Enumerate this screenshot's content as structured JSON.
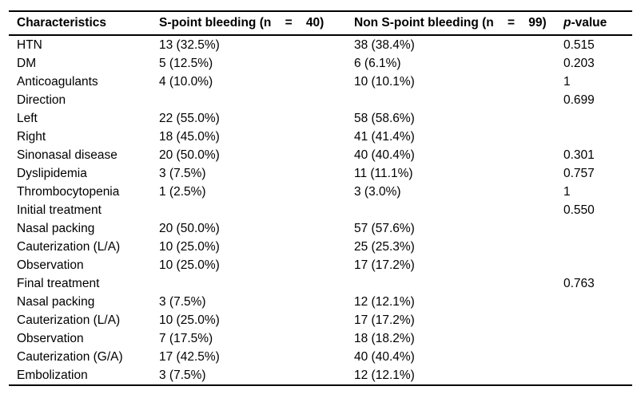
{
  "table": {
    "columns": [
      {
        "label": "Characteristics"
      },
      {
        "label": "S-point bleeding (n    =    40)"
      },
      {
        "label": "Non S-point bleeding (n    =    99)"
      },
      {
        "label_italic": "p",
        "label_rest": "-value"
      }
    ],
    "rows": [
      {
        "characteristic": "HTN",
        "s_point": "13 (32.5%)",
        "non_s_point": "38 (38.4%)",
        "p_value": "0.515"
      },
      {
        "characteristic": "DM",
        "s_point": "5 (12.5%)",
        "non_s_point": "6 (6.1%)",
        "p_value": "0.203"
      },
      {
        "characteristic": "Anticoagulants",
        "s_point": "4 (10.0%)",
        "non_s_point": "10 (10.1%)",
        "p_value": "1"
      },
      {
        "characteristic": "Direction",
        "s_point": "",
        "non_s_point": "",
        "p_value": "0.699"
      },
      {
        "characteristic": "Left",
        "s_point": "22 (55.0%)",
        "non_s_point": "58 (58.6%)",
        "p_value": ""
      },
      {
        "characteristic": "Right",
        "s_point": "18 (45.0%)",
        "non_s_point": "41 (41.4%)",
        "p_value": ""
      },
      {
        "characteristic": "Sinonasal disease",
        "s_point": "20 (50.0%)",
        "non_s_point": "40 (40.4%)",
        "p_value": "0.301"
      },
      {
        "characteristic": "Dyslipidemia",
        "s_point": "3 (7.5%)",
        "non_s_point": "11 (11.1%)",
        "p_value": "0.757"
      },
      {
        "characteristic": "Thrombocytopenia",
        "s_point": "1 (2.5%)",
        "non_s_point": "3 (3.0%)",
        "p_value": "1"
      },
      {
        "characteristic": "Initial treatment",
        "s_point": "",
        "non_s_point": "",
        "p_value": "0.550"
      },
      {
        "characteristic": "Nasal packing",
        "s_point": "20 (50.0%)",
        "non_s_point": "57 (57.6%)",
        "p_value": ""
      },
      {
        "characteristic": "Cauterization (L/A)",
        "s_point": "10 (25.0%)",
        "non_s_point": "25 (25.3%)",
        "p_value": ""
      },
      {
        "characteristic": "Observation",
        "s_point": "10 (25.0%)",
        "non_s_point": "17 (17.2%)",
        "p_value": ""
      },
      {
        "characteristic": "Final treatment",
        "s_point": "",
        "non_s_point": "",
        "p_value": "0.763"
      },
      {
        "characteristic": "Nasal packing",
        "s_point": "3 (7.5%)",
        "non_s_point": "12 (12.1%)",
        "p_value": ""
      },
      {
        "characteristic": "Cauterization (L/A)",
        "s_point": "10 (25.0%)",
        "non_s_point": "17 (17.2%)",
        "p_value": ""
      },
      {
        "characteristic": "Observation",
        "s_point": "7 (17.5%)",
        "non_s_point": "18 (18.2%)",
        "p_value": ""
      },
      {
        "characteristic": "Cauterization (G/A)",
        "s_point": "17 (42.5%)",
        "non_s_point": "40 (40.4%)",
        "p_value": ""
      },
      {
        "characteristic": "Embolization",
        "s_point": "3 (7.5%)",
        "non_s_point": "12 (12.1%)",
        "p_value": ""
      }
    ]
  }
}
